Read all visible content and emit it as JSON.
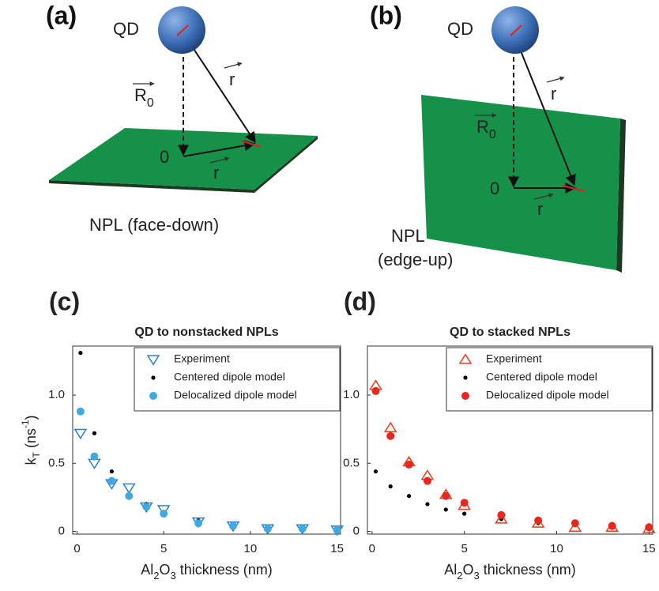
{
  "diagrams": [
    {
      "label": "(a)",
      "qd": "QD",
      "r0": [
        "R",
        "0"
      ],
      "r": "r",
      "origin": "0",
      "r_in_plane": "r",
      "caption": [
        "NPL (face-down)"
      ]
    },
    {
      "label": "(b)",
      "qd": "QD",
      "r0": [
        "R",
        "0"
      ],
      "r": "r",
      "origin": "0",
      "r_in_plane": "r",
      "caption": [
        "NPL",
        "(edge-up)"
      ]
    }
  ],
  "chart_data": [
    {
      "type": "scatter",
      "label": "(c)",
      "title": "QD to nonstacked NPLs",
      "xlabel": [
        "Al",
        "2",
        "O",
        "3",
        " thickness (nm)"
      ],
      "ylabel": [
        "k",
        "T",
        " (ns",
        "-1",
        ")"
      ],
      "x": [
        0.2,
        1,
        2,
        3,
        4,
        5,
        7,
        9,
        11,
        13,
        15
      ],
      "xlim": [
        -0.25,
        15.2
      ],
      "ylim": [
        -0.02,
        1.36
      ],
      "xticks": [
        0,
        5,
        10,
        15
      ],
      "yticks": [
        0,
        0.5,
        {
          "value": 1,
          "label": "1.0"
        }
      ],
      "legend": "top right",
      "series": [
        {
          "name": "Experiment",
          "color": "#2a7fc9",
          "marker": "triangle-down",
          "values": [
            0.72,
            0.5,
            0.35,
            0.32,
            0.18,
            0.16,
            0.07,
            0.04,
            0.02,
            0.02,
            0.01
          ]
        },
        {
          "name": "Centered dipole model",
          "color": "#000000",
          "marker": "dot",
          "values": [
            1.31,
            0.72,
            0.44,
            0.27,
            0.2,
            0.14,
            0.08,
            0.05,
            0.03,
            0.02,
            0.02
          ]
        },
        {
          "name": "Delocalized dipole model",
          "color": "#3fa9e0",
          "marker": "circle",
          "values": [
            0.88,
            0.55,
            0.37,
            0.26,
            0.18,
            0.13,
            0.06,
            0.04,
            0.02,
            0.02,
            0.01
          ]
        }
      ]
    },
    {
      "type": "scatter",
      "label": "(d)",
      "title": "QD to stacked NPLs",
      "xlabel": [
        "Al",
        "2",
        "O",
        "3",
        " thickness (nm)"
      ],
      "ylabel": null,
      "x": [
        0.2,
        1,
        2,
        3,
        4,
        5,
        7,
        9,
        11,
        13,
        15
      ],
      "xlim": [
        -0.25,
        15.2
      ],
      "ylim": [
        -0.02,
        1.36
      ],
      "xticks": [
        0,
        5,
        10,
        15
      ],
      "yticks": [
        0,
        0.5,
        {
          "value": 1,
          "label": "1.0"
        }
      ],
      "legend": "top right",
      "series": [
        {
          "name": "Experiment",
          "color": "#e0401a",
          "marker": "triangle-up",
          "values": [
            1.07,
            0.76,
            0.51,
            0.41,
            0.27,
            0.19,
            0.09,
            0.06,
            0.03,
            0.03,
            0.02
          ]
        },
        {
          "name": "Centered dipole model",
          "color": "#000000",
          "marker": "dot",
          "values": [
            0.44,
            0.33,
            0.26,
            0.2,
            0.16,
            0.13,
            0.09,
            0.06,
            0.05,
            0.03,
            0.02
          ]
        },
        {
          "name": "Delocalized dipole model",
          "color": "#e8281e",
          "marker": "circle",
          "values": [
            1.03,
            0.7,
            0.49,
            0.37,
            0.26,
            0.21,
            0.12,
            0.08,
            0.06,
            0.04,
            0.03
          ]
        }
      ]
    }
  ]
}
